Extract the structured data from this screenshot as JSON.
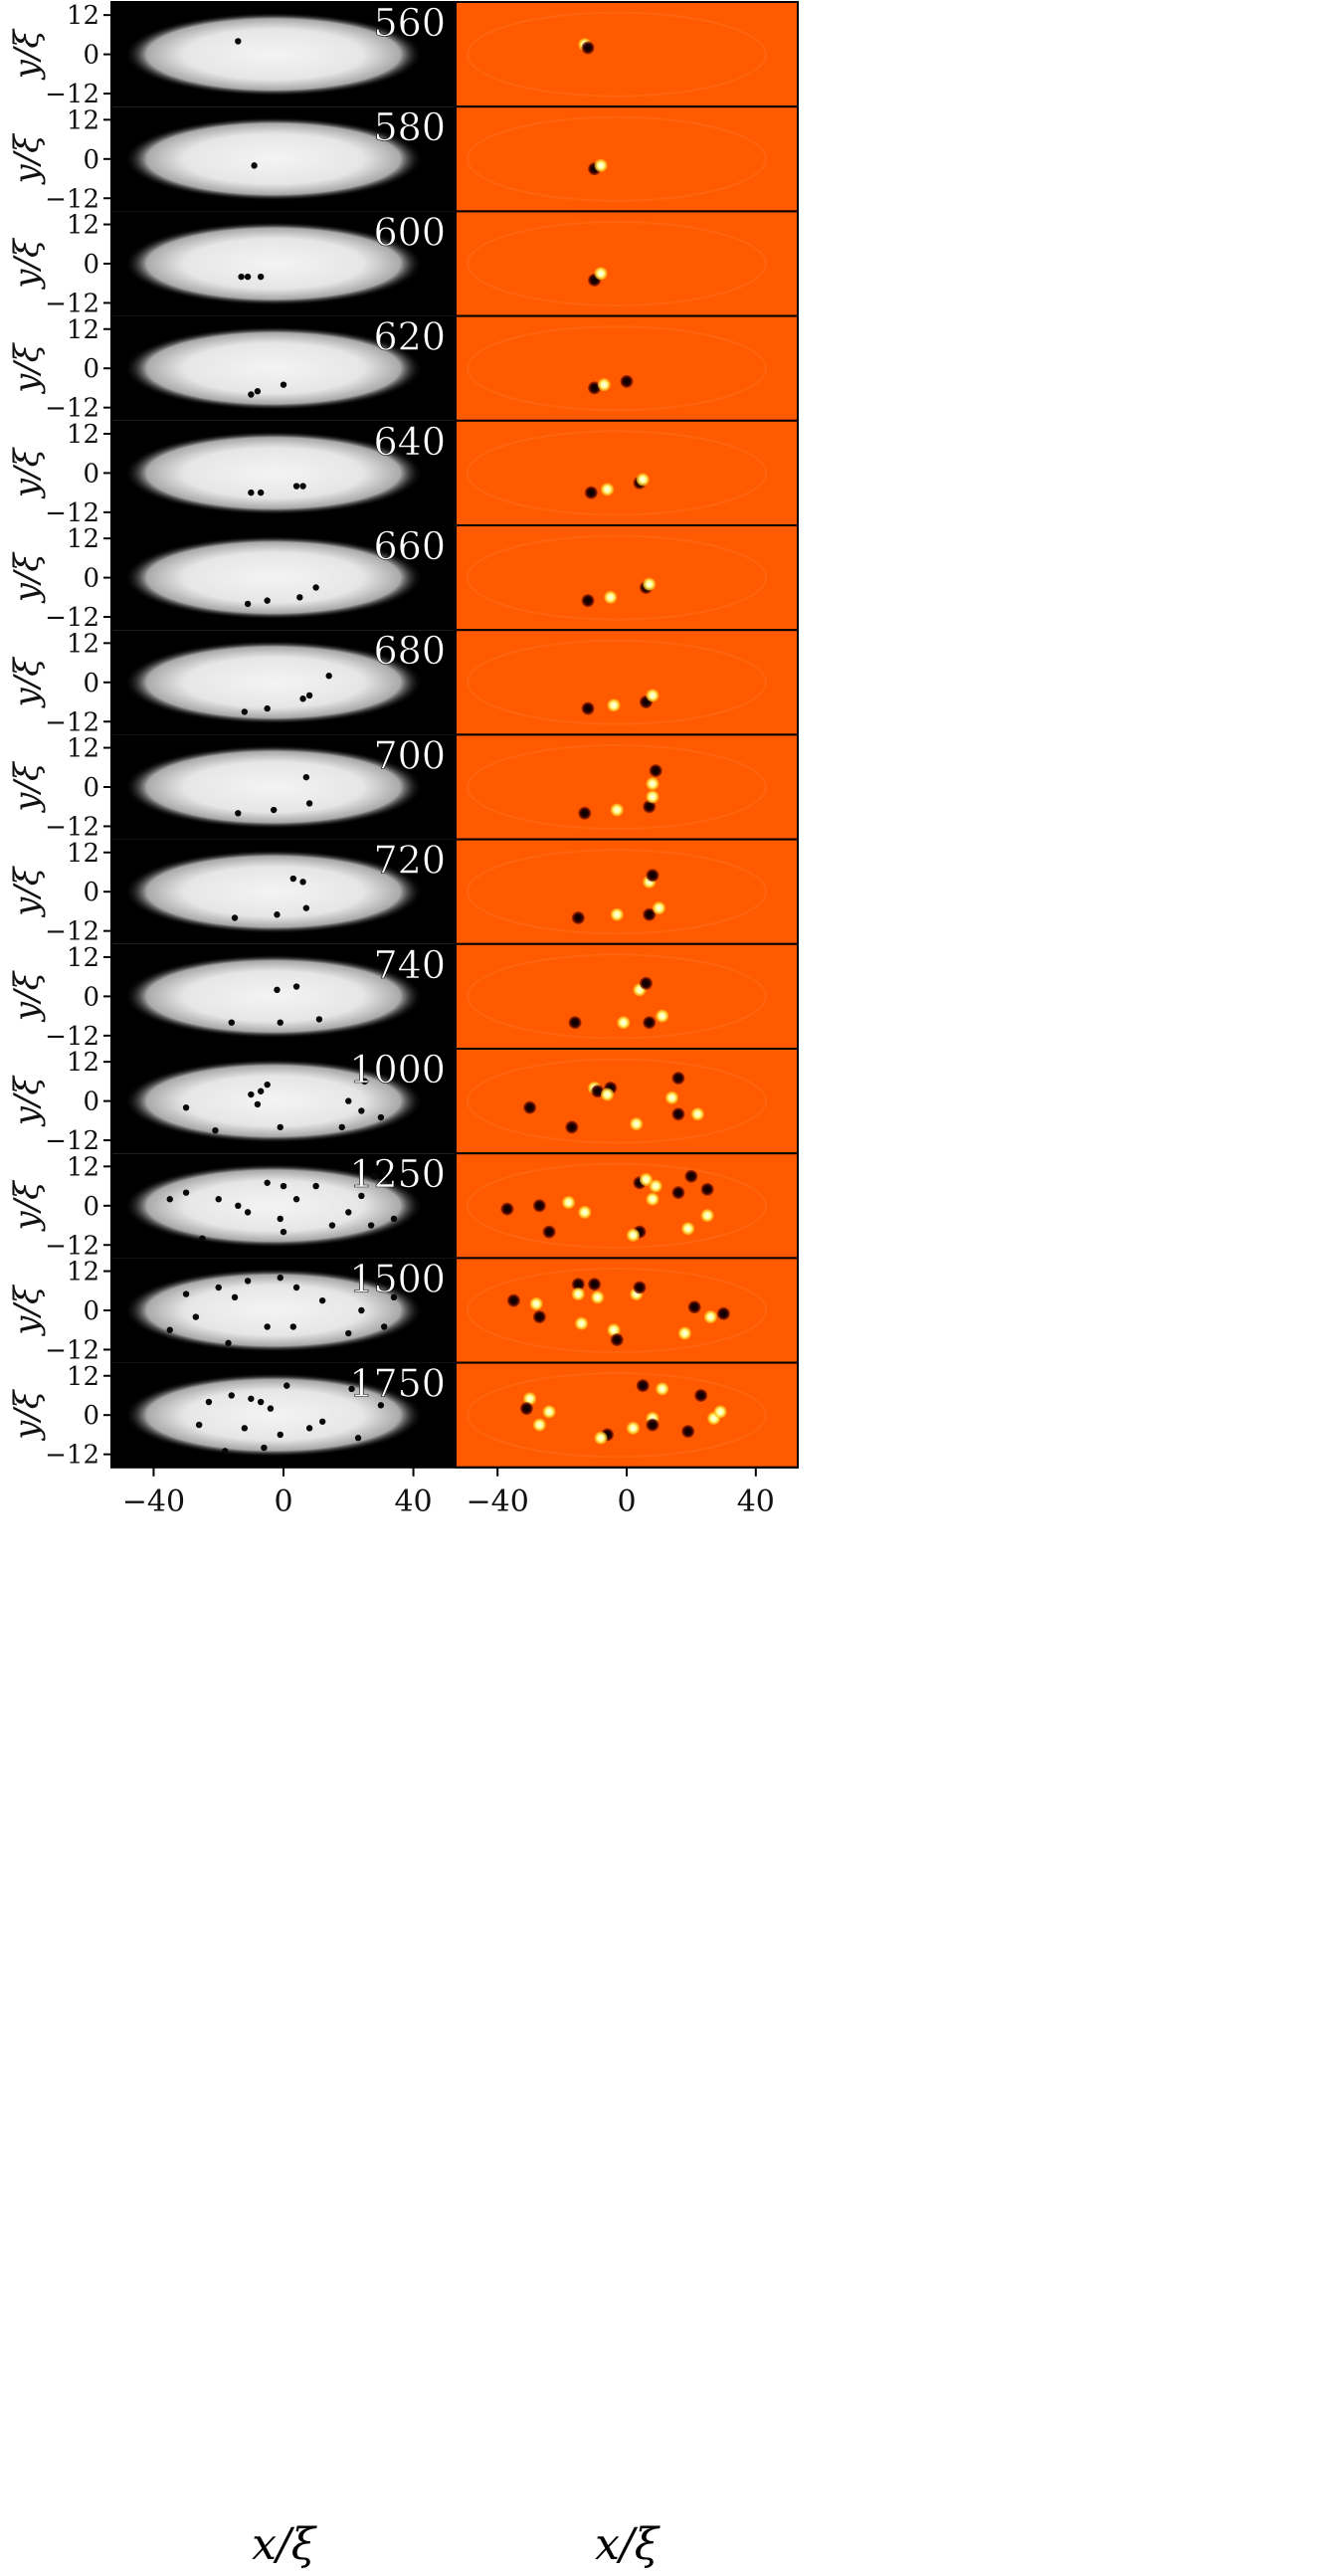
{
  "figure": {
    "y_axis_label": "y/ξ",
    "x_axis_label": "x/ξ",
    "y_ticks": [
      "12",
      "0",
      "−12"
    ],
    "x_ticks": [
      "−40",
      "0",
      "40"
    ],
    "colors": {
      "density_background": "#000000",
      "density_cloud": "#efefef",
      "phase_background": "#ff5a00",
      "vortex_dark": "#1a0000",
      "vortex_bright": "#ffff66"
    }
  },
  "panels": [
    {
      "time": "560",
      "density_vortices": [
        [
          -14,
          4
        ]
      ],
      "phase_vortices": [
        [
          -13,
          3,
          "b"
        ],
        [
          -12,
          2,
          "d"
        ]
      ]
    },
    {
      "time": "580",
      "density_vortices": [
        [
          -9,
          -2
        ]
      ],
      "phase_vortices": [
        [
          -10,
          -3,
          "d"
        ],
        [
          -8,
          -2,
          "b"
        ]
      ]
    },
    {
      "time": "600",
      "density_vortices": [
        [
          -7,
          -4
        ],
        [
          -11,
          -4
        ],
        [
          -13,
          -4
        ]
      ],
      "phase_vortices": [
        [
          -10,
          -5,
          "d"
        ],
        [
          -8,
          -3,
          "b"
        ]
      ]
    },
    {
      "time": "620",
      "density_vortices": [
        [
          0,
          -5
        ],
        [
          -8,
          -7
        ],
        [
          -10,
          -8
        ]
      ],
      "phase_vortices": [
        [
          -10,
          -6,
          "d"
        ],
        [
          -7,
          -5,
          "b"
        ],
        [
          0,
          -4,
          "d"
        ]
      ]
    },
    {
      "time": "640",
      "density_vortices": [
        [
          6,
          -4
        ],
        [
          4,
          -4
        ],
        [
          -7,
          -6
        ],
        [
          -10,
          -6
        ]
      ],
      "phase_vortices": [
        [
          -11,
          -6,
          "d"
        ],
        [
          -6,
          -5,
          "b"
        ],
        [
          4,
          -3,
          "d"
        ],
        [
          5,
          -2,
          "b"
        ]
      ]
    },
    {
      "time": "660",
      "density_vortices": [
        [
          10,
          -3
        ],
        [
          5,
          -6
        ],
        [
          -5,
          -7
        ],
        [
          -11,
          -8
        ]
      ],
      "phase_vortices": [
        [
          -12,
          -7,
          "d"
        ],
        [
          -5,
          -6,
          "b"
        ],
        [
          6,
          -3,
          "d"
        ],
        [
          7,
          -2,
          "b"
        ]
      ]
    },
    {
      "time": "680",
      "density_vortices": [
        [
          14,
          2
        ],
        [
          8,
          -4
        ],
        [
          6,
          -5
        ],
        [
          -5,
          -8
        ],
        [
          -12,
          -9
        ]
      ],
      "phase_vortices": [
        [
          -12,
          -8,
          "d"
        ],
        [
          -4,
          -7,
          "b"
        ],
        [
          6,
          -6,
          "d"
        ],
        [
          8,
          -4,
          "b"
        ]
      ]
    },
    {
      "time": "700",
      "density_vortices": [
        [
          7,
          3
        ],
        [
          8,
          -5
        ],
        [
          -3,
          -7
        ],
        [
          -14,
          -8
        ]
      ],
      "phase_vortices": [
        [
          -13,
          -8,
          "d"
        ],
        [
          -3,
          -7,
          "b"
        ],
        [
          7,
          -6,
          "d"
        ],
        [
          8,
          -3,
          "b"
        ],
        [
          9,
          5,
          "d"
        ],
        [
          8,
          1,
          "b"
        ]
      ]
    },
    {
      "time": "720",
      "density_vortices": [
        [
          3,
          4
        ],
        [
          6,
          3
        ],
        [
          7,
          -5
        ],
        [
          -2,
          -7
        ],
        [
          -15,
          -8
        ]
      ],
      "phase_vortices": [
        [
          -15,
          -8,
          "d"
        ],
        [
          -3,
          -7,
          "b"
        ],
        [
          7,
          -7,
          "d"
        ],
        [
          10,
          -5,
          "b"
        ],
        [
          7,
          3,
          "b"
        ],
        [
          8,
          5,
          "d"
        ]
      ]
    },
    {
      "time": "740",
      "density_vortices": [
        [
          -2,
          2
        ],
        [
          4,
          3
        ],
        [
          11,
          -7
        ],
        [
          -1,
          -8
        ],
        [
          -16,
          -8
        ]
      ],
      "phase_vortices": [
        [
          -16,
          -8,
          "d"
        ],
        [
          -1,
          -8,
          "b"
        ],
        [
          7,
          -8,
          "d"
        ],
        [
          11,
          -6,
          "b"
        ],
        [
          4,
          2,
          "b"
        ],
        [
          6,
          4,
          "d"
        ]
      ]
    },
    {
      "time": "1000",
      "density_vortices": [
        [
          -10,
          2
        ],
        [
          -7,
          3
        ],
        [
          -5,
          5
        ],
        [
          -8,
          -1
        ],
        [
          20,
          0
        ],
        [
          -30,
          -2
        ],
        [
          -21,
          -9
        ],
        [
          -1,
          -8
        ],
        [
          30,
          -5
        ],
        [
          24,
          -3
        ],
        [
          18,
          -8
        ],
        [
          25,
          6
        ]
      ],
      "phase_vortices": [
        [
          -30,
          -2,
          "d"
        ],
        [
          -10,
          4,
          "b"
        ],
        [
          -9,
          3,
          "d"
        ],
        [
          -5,
          4,
          "d"
        ],
        [
          -6,
          2,
          "b"
        ],
        [
          -17,
          -8,
          "d"
        ],
        [
          3,
          -7,
          "b"
        ],
        [
          14,
          1,
          "b"
        ],
        [
          16,
          7,
          "d"
        ],
        [
          16,
          -4,
          "d"
        ],
        [
          22,
          -4,
          "b"
        ]
      ]
    },
    {
      "time": "1250",
      "density_vortices": [
        [
          -20,
          2
        ],
        [
          -14,
          0
        ],
        [
          -11,
          -2
        ],
        [
          0,
          6
        ],
        [
          4,
          2
        ],
        [
          -5,
          7
        ],
        [
          10,
          6
        ],
        [
          20,
          -2
        ],
        [
          27,
          -6
        ],
        [
          -35,
          2
        ],
        [
          0,
          -8
        ],
        [
          -30,
          4
        ],
        [
          -1,
          -4
        ],
        [
          28,
          9
        ],
        [
          15,
          -6
        ],
        [
          24,
          3
        ],
        [
          34,
          -4
        ],
        [
          -25,
          -10
        ]
      ],
      "phase_vortices": [
        [
          -37,
          -1,
          "d"
        ],
        [
          -27,
          0,
          "d"
        ],
        [
          -18,
          1,
          "b"
        ],
        [
          -13,
          -2,
          "b"
        ],
        [
          -24,
          -8,
          "d"
        ],
        [
          4,
          7,
          "d"
        ],
        [
          6,
          8,
          "b"
        ],
        [
          9,
          6,
          "b"
        ],
        [
          8,
          2,
          "b"
        ],
        [
          16,
          4,
          "d"
        ],
        [
          20,
          9,
          "d"
        ],
        [
          25,
          5,
          "d"
        ],
        [
          25,
          -3,
          "b"
        ],
        [
          19,
          -7,
          "b"
        ],
        [
          4,
          -8,
          "d"
        ],
        [
          2,
          -9,
          "b"
        ]
      ]
    },
    {
      "time": "1500",
      "density_vortices": [
        [
          -30,
          5
        ],
        [
          -20,
          7
        ],
        [
          -15,
          4
        ],
        [
          -11,
          9
        ],
        [
          4,
          7
        ],
        [
          12,
          3
        ],
        [
          24,
          0
        ],
        [
          -27,
          -2
        ],
        [
          -5,
          -5
        ],
        [
          3,
          -5
        ],
        [
          -17,
          -10
        ],
        [
          -35,
          -6
        ],
        [
          20,
          -7
        ],
        [
          31,
          -5
        ],
        [
          34,
          4
        ],
        [
          -1,
          10
        ]
      ],
      "phase_vortices": [
        [
          -35,
          3,
          "d"
        ],
        [
          -28,
          2,
          "b"
        ],
        [
          -27,
          -2,
          "d"
        ],
        [
          -15,
          8,
          "d"
        ],
        [
          -10,
          8,
          "d"
        ],
        [
          -15,
          5,
          "b"
        ],
        [
          -9,
          4,
          "b"
        ],
        [
          3,
          5,
          "b"
        ],
        [
          4,
          7,
          "d"
        ],
        [
          -4,
          -6,
          "b"
        ],
        [
          -14,
          -4,
          "b"
        ],
        [
          -3,
          -9,
          "d"
        ],
        [
          21,
          1,
          "d"
        ],
        [
          26,
          -2,
          "b"
        ],
        [
          30,
          -1,
          "d"
        ],
        [
          18,
          -7,
          "b"
        ]
      ]
    },
    {
      "time": "1750",
      "density_vortices": [
        [
          -23,
          4
        ],
        [
          -16,
          6
        ],
        [
          -10,
          5
        ],
        [
          -7,
          4
        ],
        [
          -26,
          -3
        ],
        [
          -12,
          -4
        ],
        [
          12,
          -2
        ],
        [
          30,
          3
        ],
        [
          21,
          8
        ],
        [
          1,
          9
        ],
        [
          -1,
          -6
        ],
        [
          8,
          -4
        ],
        [
          -6,
          -10
        ],
        [
          -18,
          -11
        ],
        [
          23,
          -7
        ],
        [
          -4,
          2
        ]
      ],
      "phase_vortices": [
        [
          -30,
          5,
          "b"
        ],
        [
          -31,
          2,
          "d"
        ],
        [
          -24,
          1,
          "b"
        ],
        [
          -27,
          -3,
          "b"
        ],
        [
          -6,
          -6,
          "d"
        ],
        [
          -8,
          -7,
          "b"
        ],
        [
          5,
          9,
          "d"
        ],
        [
          11,
          8,
          "b"
        ],
        [
          23,
          6,
          "d"
        ],
        [
          27,
          -1,
          "b"
        ],
        [
          29,
          1,
          "b"
        ],
        [
          19,
          -5,
          "d"
        ],
        [
          8,
          -1,
          "b"
        ],
        [
          2,
          -4,
          "b"
        ],
        [
          8,
          -3,
          "d"
        ]
      ]
    }
  ]
}
